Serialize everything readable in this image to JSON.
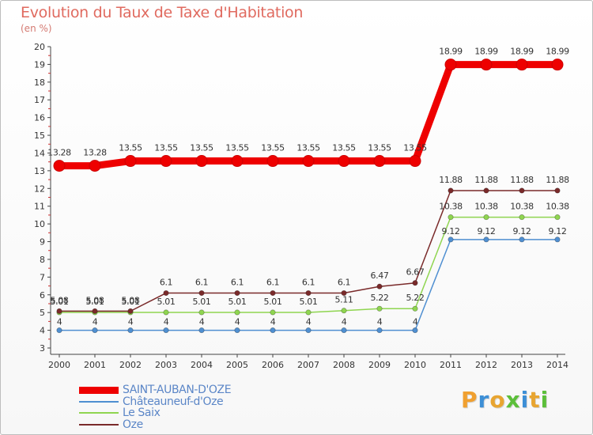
{
  "title": "Evolution du Taux de Taxe d'Habitation",
  "unit_label": "(en %)",
  "logo": {
    "text": "Proxiti",
    "colors": [
      "#f0a030",
      "#3d8fd6",
      "#e8a531",
      "#5cbf3a",
      "#3d8fd6",
      "#e8a531",
      "#5cbf3a"
    ]
  },
  "chart_data": {
    "type": "line",
    "title": "Evolution du Taux de Taxe d'Habitation",
    "ylabel": "(en %)",
    "xlabel": "",
    "x": [
      2000,
      2001,
      2002,
      2003,
      2004,
      2005,
      2006,
      2007,
      2008,
      2009,
      2010,
      2011,
      2012,
      2013,
      2014
    ],
    "ylim": [
      3,
      20
    ],
    "yticks": [
      3,
      4,
      5,
      6,
      7,
      8,
      9,
      10,
      11,
      12,
      13,
      14,
      15,
      16,
      17,
      18,
      19,
      20
    ],
    "grid": false,
    "legend_position": "bottom-left",
    "series": [
      {
        "name": "SAINT-AUBAN-D'OZE",
        "color": "#ee0000",
        "values": [
          13.28,
          13.28,
          13.55,
          13.55,
          13.55,
          13.55,
          13.55,
          13.55,
          13.55,
          13.55,
          13.55,
          18.99,
          18.99,
          18.99,
          18.99
        ],
        "labels": [
          "13.28",
          "13.28",
          "13.55",
          "13.55",
          "13.55",
          "13.55",
          "13.55",
          "13.55",
          "13.55",
          "13.55",
          "13.55",
          "18.99",
          "18.99",
          "18.99",
          "18.99"
        ]
      },
      {
        "name": "Châteauneuf-d'Oze",
        "color": "#4f8fd1",
        "values": [
          4,
          4,
          4,
          4,
          4,
          4,
          4,
          4,
          4,
          4,
          4,
          9.12,
          9.12,
          9.12,
          9.12
        ],
        "labels": [
          "4",
          "4",
          "4",
          "4",
          "4",
          "4",
          "4",
          "4",
          "4",
          "4",
          "4",
          "9.12",
          "9.12",
          "9.12",
          "9.12"
        ]
      },
      {
        "name": "Le Saix",
        "color": "#8fd550",
        "values": [
          5.01,
          5.01,
          5.01,
          5.01,
          5.01,
          5.01,
          5.01,
          5.01,
          5.11,
          5.22,
          5.22,
          10.38,
          10.38,
          10.38,
          10.38
        ],
        "labels": [
          "5.01",
          "5.01",
          "5.01",
          "5.01",
          "5.01",
          "5.01",
          "5.01",
          "5.01",
          "5.11",
          "5.22",
          "5.22",
          "10.38",
          "10.38",
          "10.38",
          "10.38"
        ]
      },
      {
        "name": "Oze",
        "color": "#7a2a2a",
        "values": [
          5.08,
          5.08,
          5.08,
          6.1,
          6.1,
          6.1,
          6.1,
          6.1,
          6.1,
          6.47,
          6.67,
          11.88,
          11.88,
          11.88,
          11.88
        ],
        "labels": [
          "5.08",
          "5.08",
          "5.08",
          "6.1",
          "6.1",
          "6.1",
          "6.1",
          "6.1",
          "6.1",
          "6.47",
          "6.67",
          "11.88",
          "11.88",
          "11.88",
          "11.88"
        ]
      }
    ]
  }
}
